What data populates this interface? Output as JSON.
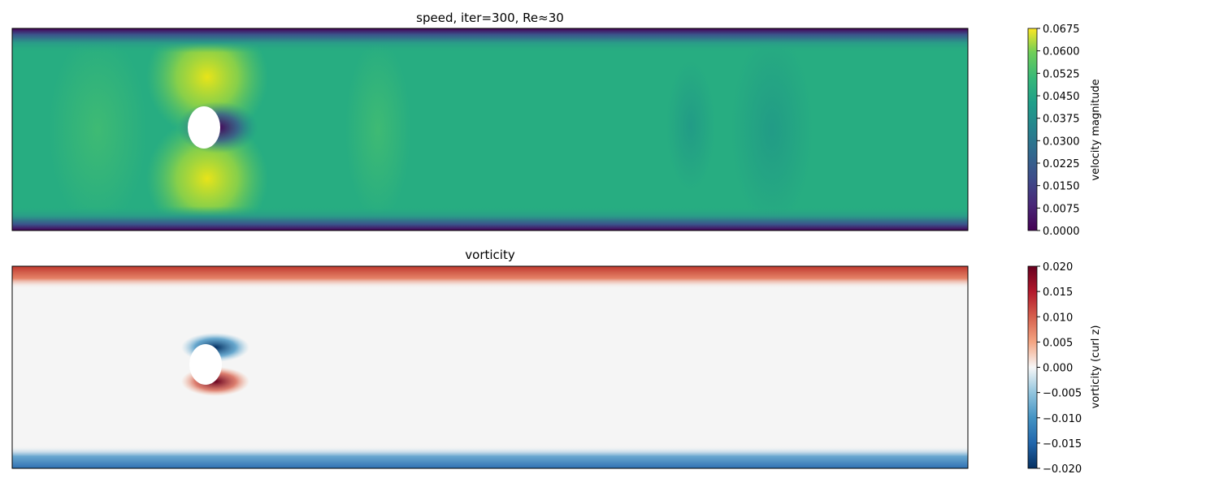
{
  "chart_data": [
    {
      "type": "heatmap",
      "title": "speed, iter=300, Re≈30",
      "colormap": "viridis",
      "colorbar_label": "velocity magnitude",
      "range": [
        0.0,
        0.0675
      ],
      "colorbar_ticks": [
        "0.0000",
        "0.0075",
        "0.0150",
        "0.0225",
        "0.0300",
        "0.0375",
        "0.0450",
        "0.0525",
        "0.0600",
        "0.0675"
      ],
      "axes_ticks": false,
      "description_values": {
        "bulk": 0.042,
        "near_cylinder_max": 0.064,
        "wake_min": 0.0,
        "walls": 0.0
      }
    },
    {
      "type": "heatmap",
      "title": "vorticity",
      "colormap": "RdBu_r",
      "colorbar_label": "vorticity (curl z)",
      "range": [
        -0.02,
        0.02
      ],
      "colorbar_ticks": [
        "−0.020",
        "−0.015",
        "−0.010",
        "−0.005",
        "0.000",
        "0.005",
        "0.010",
        "0.015",
        "0.020"
      ],
      "axes_ticks": false,
      "description_values": {
        "bulk": 0.0,
        "top_wall": 0.012,
        "bottom_wall": -0.012,
        "cylinder_top": -0.02,
        "cylinder_bottom": 0.02
      }
    }
  ]
}
